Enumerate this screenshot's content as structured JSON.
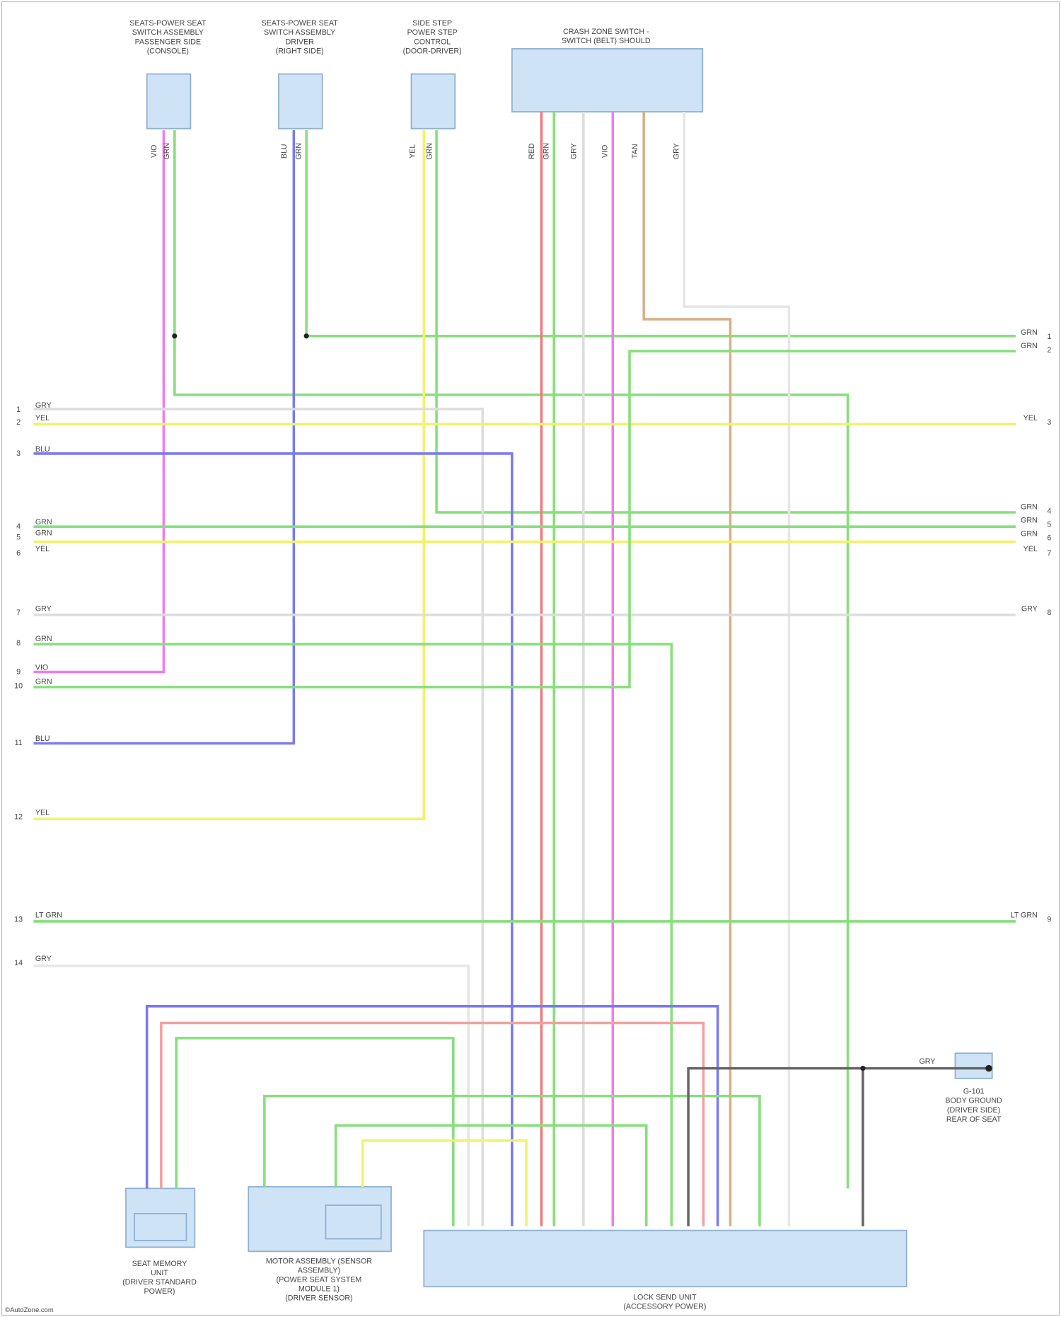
{
  "components": [
    {
      "label": [
        "SEATS-POWER SEAT",
        "SWITCH ASSEMBLY",
        "PASSENGER SIDE",
        "(CONSOLE)"
      ]
    },
    {
      "label": [
        "SEATS-POWER SEAT",
        "SWITCH ASSEMBLY",
        "DRIVER",
        "(RIGHT SIDE)"
      ]
    },
    {
      "label": [
        "SIDE STEP",
        "POWER STEP",
        "CONTROL",
        "(DOOR-DRIVER)"
      ]
    },
    {
      "label": [
        "CRASH ZONE SWITCH -",
        "SWITCH (BELT) SHOULD"
      ]
    },
    {
      "label": [
        "SEAT MEMORY",
        "UNIT",
        "(DRIVER STANDARD",
        "POWER)"
      ]
    },
    {
      "label": [
        "MOTOR ASSEMBLY (SENSOR",
        "ASSEMBLY)",
        "(POWER SEAT SYSTEM",
        "MODULE 1)",
        "(DRIVER SENSOR)"
      ]
    },
    {
      "label": [
        "LOCK SEND UNIT",
        "(ACCESSORY POWER)"
      ]
    },
    {
      "label": [
        "G-101",
        "BODY GROUND",
        "(DRIVER SIDE)",
        "REAR OF SEAT"
      ]
    }
  ],
  "top_wire_labels": [
    "VIO",
    "GRN",
    "BLU",
    "GRN",
    "YEL",
    "GRN",
    "RED",
    "GRN",
    "GRY",
    "VIO",
    "TAN",
    "GRY"
  ],
  "left_wire_labels": [
    "GRY",
    "YEL",
    "BLU",
    "GRN",
    "GRN",
    "YEL",
    "GRY",
    "GRN",
    "VIO",
    "GRN",
    "BLU",
    "YEL",
    "LT GRN",
    "GRY"
  ],
  "right_wire_labels": [
    "GRN",
    "GRN",
    "YEL",
    "GRN",
    "GRN",
    "GRN",
    "YEL",
    "GRY",
    "LT GRN"
  ],
  "left_pins": [
    "1",
    "2",
    "3",
    "4",
    "5",
    "6",
    "7",
    "8",
    "9",
    "10",
    "11",
    "12",
    "13",
    "14"
  ],
  "right_pins": [
    "1",
    "2",
    "3",
    "4",
    "5",
    "6",
    "7",
    "8",
    "9"
  ],
  "splice_label": "GRY",
  "footer": "©AutoZone.com"
}
